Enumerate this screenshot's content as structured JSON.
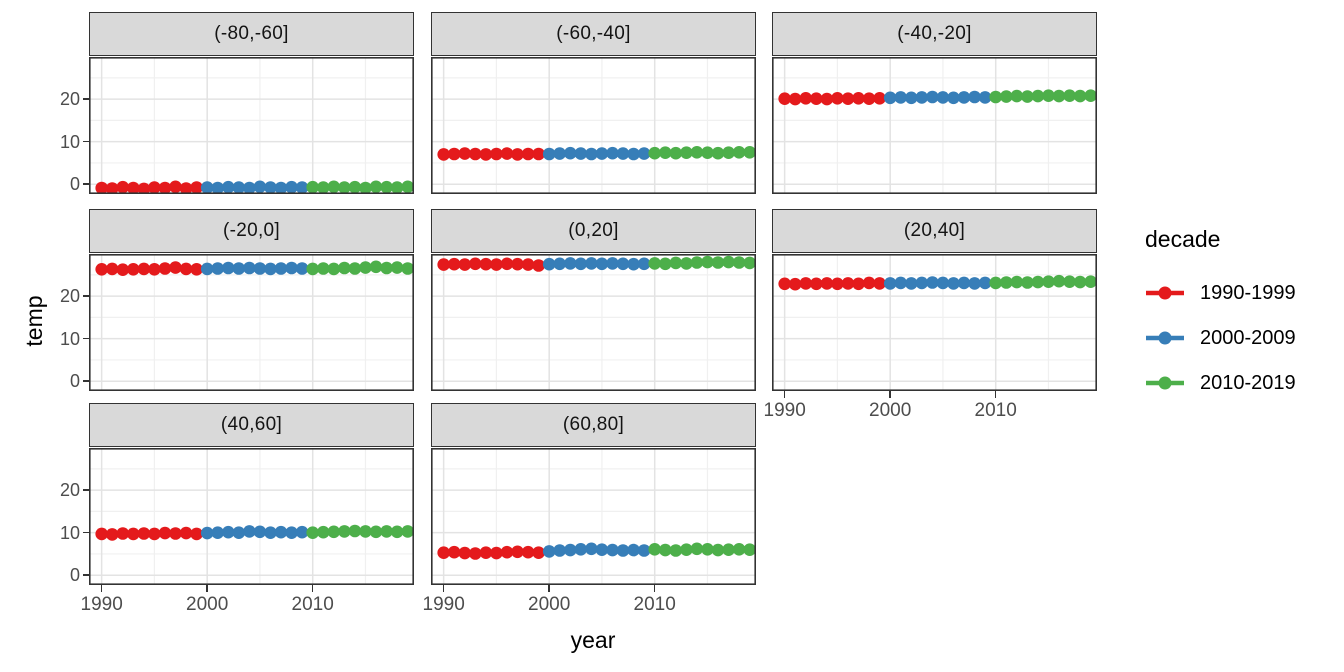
{
  "figure": {
    "x_axis_title": "year",
    "y_axis_title": "temp"
  },
  "legend": {
    "title": "decade",
    "entries": [
      {
        "label": "1990-1999",
        "color": "#E41A1C"
      },
      {
        "label": "2000-2009",
        "color": "#377EB8"
      },
      {
        "label": "2010-2019",
        "color": "#4DAF4A"
      }
    ]
  },
  "colors": {
    "strip_fill": "#d9d9d9",
    "panel_border": "#333333",
    "grid_major": "#e3e3e3",
    "grid_minor": "#f0f0f0",
    "tick_text": "#4d4d4d"
  },
  "chart_data": {
    "type": "scatter",
    "title": "",
    "xlabel": "year",
    "ylabel": "temp",
    "legend_title": "decade",
    "legend_position": "right",
    "grid": "major+minor",
    "facet_layout": "3 columns, 8 panels",
    "x_range": [
      1988.8,
      2019.6
    ],
    "y_range": [
      -2.3,
      29.9
    ],
    "x_major_ticks": [
      1990,
      2000,
      2010
    ],
    "x_minor_ticks": [
      1995,
      2005,
      2015
    ],
    "y_major_ticks": [
      0,
      10,
      20
    ],
    "y_minor_ticks": [
      5,
      15,
      25
    ],
    "series_groups": [
      {
        "name": "1990-1999",
        "year_start": 1990,
        "year_end": 1999
      },
      {
        "name": "2000-2009",
        "year_start": 2000,
        "year_end": 2009
      },
      {
        "name": "2010-2019",
        "year_start": 2010,
        "year_end": 2019
      }
    ],
    "years": [
      1990,
      1991,
      1992,
      1993,
      1994,
      1995,
      1996,
      1997,
      1998,
      1999,
      2000,
      2001,
      2002,
      2003,
      2004,
      2005,
      2006,
      2007,
      2008,
      2009,
      2010,
      2011,
      2012,
      2013,
      2014,
      2015,
      2016,
      2017,
      2018,
      2019
    ],
    "facets": [
      {
        "label": "(-80,-60]",
        "values": [
          -0.9,
          -1.0,
          -0.7,
          -0.9,
          -1.1,
          -0.8,
          -0.9,
          -0.6,
          -1.0,
          -0.8,
          -0.8,
          -0.9,
          -0.7,
          -0.8,
          -0.9,
          -0.6,
          -0.8,
          -0.9,
          -0.7,
          -0.8,
          -0.7,
          -0.8,
          -0.6,
          -0.8,
          -0.7,
          -0.9,
          -0.6,
          -0.7,
          -0.8,
          -0.6
        ]
      },
      {
        "label": "(-60,-40]",
        "values": [
          7.0,
          7.1,
          7.2,
          7.1,
          7.0,
          7.1,
          7.2,
          7.0,
          7.1,
          7.1,
          7.1,
          7.2,
          7.3,
          7.2,
          7.1,
          7.2,
          7.3,
          7.2,
          7.1,
          7.2,
          7.3,
          7.4,
          7.3,
          7.4,
          7.5,
          7.4,
          7.3,
          7.4,
          7.5,
          7.5
        ]
      },
      {
        "label": "(-40,-20]",
        "values": [
          20.1,
          20.0,
          20.2,
          20.1,
          20.0,
          20.2,
          20.1,
          20.2,
          20.1,
          20.2,
          20.3,
          20.4,
          20.3,
          20.4,
          20.5,
          20.4,
          20.3,
          20.4,
          20.5,
          20.4,
          20.5,
          20.6,
          20.7,
          20.6,
          20.7,
          20.8,
          20.7,
          20.8,
          20.7,
          20.8
        ]
      },
      {
        "label": "(-20,0]",
        "values": [
          26.3,
          26.4,
          26.2,
          26.3,
          26.4,
          26.3,
          26.5,
          26.7,
          26.4,
          26.3,
          26.4,
          26.5,
          26.6,
          26.5,
          26.6,
          26.5,
          26.4,
          26.5,
          26.6,
          26.5,
          26.4,
          26.5,
          26.4,
          26.6,
          26.5,
          26.7,
          26.9,
          26.6,
          26.7,
          26.5
        ]
      },
      {
        "label": "(0,20]",
        "values": [
          27.4,
          27.5,
          27.4,
          27.6,
          27.5,
          27.4,
          27.6,
          27.5,
          27.4,
          27.2,
          27.5,
          27.6,
          27.7,
          27.6,
          27.7,
          27.6,
          27.7,
          27.6,
          27.5,
          27.6,
          27.7,
          27.6,
          27.8,
          27.7,
          27.9,
          28.0,
          27.9,
          28.0,
          27.9,
          27.8
        ]
      },
      {
        "label": "(20,40]",
        "values": [
          22.9,
          22.8,
          23.0,
          22.9,
          23.0,
          22.9,
          23.0,
          22.9,
          23.1,
          23.0,
          23.0,
          23.1,
          23.0,
          23.1,
          23.2,
          23.1,
          23.0,
          23.1,
          23.0,
          23.1,
          23.1,
          23.2,
          23.3,
          23.2,
          23.3,
          23.4,
          23.5,
          23.4,
          23.3,
          23.4
        ]
      },
      {
        "label": "(40,60]",
        "values": [
          9.7,
          9.6,
          9.8,
          9.7,
          9.8,
          9.7,
          9.9,
          9.8,
          9.9,
          9.7,
          9.9,
          10.0,
          10.1,
          10.0,
          10.3,
          10.2,
          10.0,
          10.1,
          10.0,
          10.1,
          10.0,
          10.1,
          10.2,
          10.3,
          10.4,
          10.3,
          10.2,
          10.3,
          10.2,
          10.3
        ]
      },
      {
        "label": "(60,80]",
        "values": [
          5.3,
          5.4,
          5.2,
          5.1,
          5.3,
          5.2,
          5.4,
          5.5,
          5.4,
          5.3,
          5.6,
          5.8,
          5.9,
          6.1,
          6.2,
          6.0,
          5.9,
          5.8,
          5.9,
          5.8,
          6.1,
          5.9,
          5.8,
          6.0,
          6.2,
          6.1,
          5.9,
          6.0,
          6.1,
          6.0
        ]
      }
    ]
  }
}
